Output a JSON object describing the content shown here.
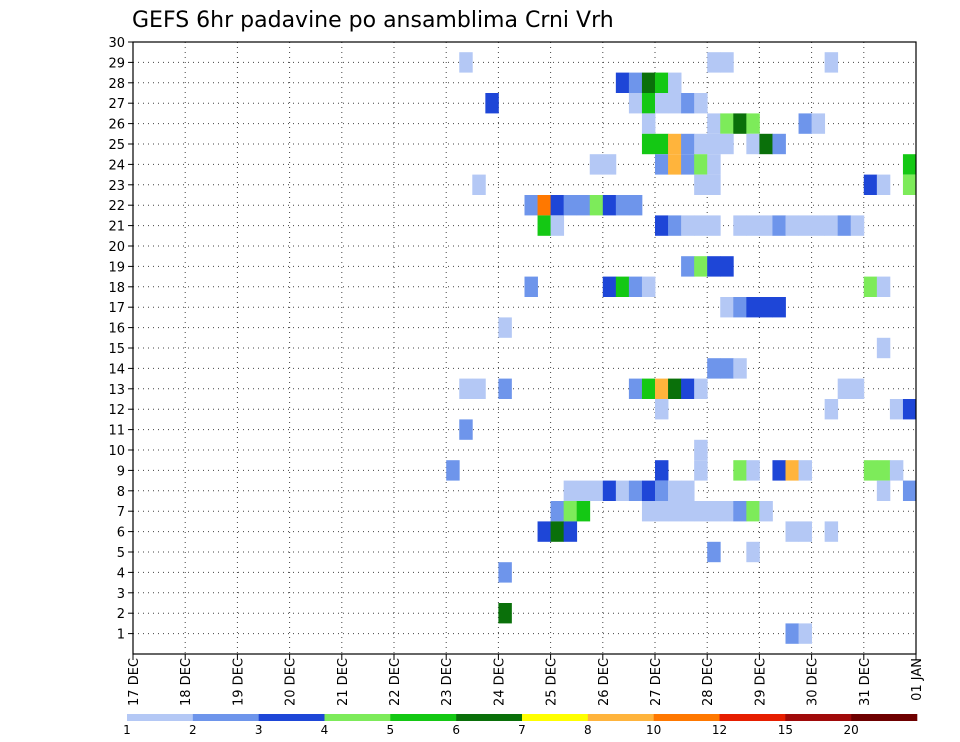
{
  "chart_data": {
    "type": "heatmap",
    "title": "GEFS 6hr padavine po ansamblima Crni Vrh",
    "xlabel": "",
    "ylabel": "",
    "x_tick_labels": [
      "17 DEC",
      "18 DEC",
      "19 DEC",
      "20 DEC",
      "21 DEC",
      "22 DEC",
      "23 DEC",
      "24 DEC",
      "25 DEC",
      "26 DEC",
      "27 DEC",
      "28 DEC",
      "29 DEC",
      "30 DEC",
      "31 DEC",
      "01 JAN"
    ],
    "y_tick_labels": [
      "1",
      "2",
      "3",
      "4",
      "5",
      "6",
      "7",
      "8",
      "9",
      "10",
      "11",
      "12",
      "13",
      "14",
      "15",
      "16",
      "17",
      "18",
      "19",
      "20",
      "21",
      "22",
      "23",
      "24",
      "25",
      "26",
      "27",
      "28",
      "29",
      "30"
    ],
    "x_unit": "6-hour steps starting 17 DEC 00Z",
    "xlim": [
      0,
      60
    ],
    "ylim": [
      0,
      30
    ],
    "grid": true,
    "colorbar": {
      "labels": [
        "1",
        "2",
        "3",
        "4",
        "5",
        "6",
        "7",
        "8",
        "10",
        "12",
        "15",
        "20"
      ],
      "colors": [
        "#b4c8f5",
        "#6e95eb",
        "#1e46d7",
        "#7deb5a",
        "#14c814",
        "#0a700a",
        "#ffff00",
        "#ffb43c",
        "#ff7800",
        "#e61e00",
        "#a00a0a",
        "#6e0000"
      ]
    },
    "cells": [
      {
        "member": 29,
        "step": 25,
        "cls": 1
      },
      {
        "member": 29,
        "step": 44,
        "cls": 1
      },
      {
        "member": 29,
        "step": 45,
        "cls": 1
      },
      {
        "member": 29,
        "step": 53,
        "cls": 1
      },
      {
        "member": 28,
        "step": 37,
        "cls": 3
      },
      {
        "member": 28,
        "step": 38,
        "cls": 2
      },
      {
        "member": 28,
        "step": 39,
        "cls": 6
      },
      {
        "member": 28,
        "step": 40,
        "cls": 5
      },
      {
        "member": 28,
        "step": 41,
        "cls": 1
      },
      {
        "member": 27,
        "step": 27,
        "cls": 3
      },
      {
        "member": 27,
        "step": 38,
        "cls": 1
      },
      {
        "member": 27,
        "step": 39,
        "cls": 5
      },
      {
        "member": 27,
        "step": 40,
        "cls": 1
      },
      {
        "member": 27,
        "step": 41,
        "cls": 1
      },
      {
        "member": 27,
        "step": 42,
        "cls": 2
      },
      {
        "member": 27,
        "step": 43,
        "cls": 1
      },
      {
        "member": 26,
        "step": 39,
        "cls": 1
      },
      {
        "member": 26,
        "step": 44,
        "cls": 1
      },
      {
        "member": 26,
        "step": 45,
        "cls": 4
      },
      {
        "member": 26,
        "step": 46,
        "cls": 6
      },
      {
        "member": 26,
        "step": 47,
        "cls": 4
      },
      {
        "member": 26,
        "step": 51,
        "cls": 2
      },
      {
        "member": 26,
        "step": 52,
        "cls": 1
      },
      {
        "member": 25,
        "step": 39,
        "cls": 5
      },
      {
        "member": 25,
        "step": 40,
        "cls": 5
      },
      {
        "member": 25,
        "step": 41,
        "cls": 8
      },
      {
        "member": 25,
        "step": 42,
        "cls": 2
      },
      {
        "member": 25,
        "step": 43,
        "cls": 1
      },
      {
        "member": 25,
        "step": 44,
        "cls": 1
      },
      {
        "member": 25,
        "step": 45,
        "cls": 1
      },
      {
        "member": 25,
        "step": 47,
        "cls": 1
      },
      {
        "member": 25,
        "step": 48,
        "cls": 6
      },
      {
        "member": 25,
        "step": 49,
        "cls": 2
      },
      {
        "member": 24,
        "step": 35,
        "cls": 1
      },
      {
        "member": 24,
        "step": 36,
        "cls": 1
      },
      {
        "member": 24,
        "step": 40,
        "cls": 2
      },
      {
        "member": 24,
        "step": 41,
        "cls": 8
      },
      {
        "member": 24,
        "step": 42,
        "cls": 2
      },
      {
        "member": 24,
        "step": 43,
        "cls": 4
      },
      {
        "member": 24,
        "step": 44,
        "cls": 1
      },
      {
        "member": 24,
        "step": 59,
        "cls": 5
      },
      {
        "member": 23,
        "step": 26,
        "cls": 1
      },
      {
        "member": 23,
        "step": 43,
        "cls": 1
      },
      {
        "member": 23,
        "step": 44,
        "cls": 1
      },
      {
        "member": 23,
        "step": 56,
        "cls": 3
      },
      {
        "member": 23,
        "step": 57,
        "cls": 1
      },
      {
        "member": 23,
        "step": 59,
        "cls": 4
      },
      {
        "member": 22,
        "step": 30,
        "cls": 2
      },
      {
        "member": 22,
        "step": 31,
        "cls": 9
      },
      {
        "member": 22,
        "step": 32,
        "cls": 3
      },
      {
        "member": 22,
        "step": 33,
        "cls": 2
      },
      {
        "member": 22,
        "step": 34,
        "cls": 2
      },
      {
        "member": 22,
        "step": 35,
        "cls": 4
      },
      {
        "member": 22,
        "step": 36,
        "cls": 3
      },
      {
        "member": 22,
        "step": 37,
        "cls": 2
      },
      {
        "member": 22,
        "step": 38,
        "cls": 2
      },
      {
        "member": 21,
        "step": 31,
        "cls": 5
      },
      {
        "member": 21,
        "step": 32,
        "cls": 1
      },
      {
        "member": 21,
        "step": 40,
        "cls": 3
      },
      {
        "member": 21,
        "step": 41,
        "cls": 2
      },
      {
        "member": 21,
        "step": 42,
        "cls": 1
      },
      {
        "member": 21,
        "step": 43,
        "cls": 1
      },
      {
        "member": 21,
        "step": 44,
        "cls": 1
      },
      {
        "member": 21,
        "step": 46,
        "cls": 1
      },
      {
        "member": 21,
        "step": 47,
        "cls": 1
      },
      {
        "member": 21,
        "step": 48,
        "cls": 1
      },
      {
        "member": 21,
        "step": 49,
        "cls": 2
      },
      {
        "member": 21,
        "step": 50,
        "cls": 1
      },
      {
        "member": 21,
        "step": 51,
        "cls": 1
      },
      {
        "member": 21,
        "step": 52,
        "cls": 1
      },
      {
        "member": 21,
        "step": 53,
        "cls": 1
      },
      {
        "member": 21,
        "step": 54,
        "cls": 2
      },
      {
        "member": 21,
        "step": 55,
        "cls": 1
      },
      {
        "member": 19,
        "step": 42,
        "cls": 2
      },
      {
        "member": 19,
        "step": 43,
        "cls": 4
      },
      {
        "member": 19,
        "step": 44,
        "cls": 3
      },
      {
        "member": 19,
        "step": 45,
        "cls": 3
      },
      {
        "member": 18,
        "step": 30,
        "cls": 2
      },
      {
        "member": 18,
        "step": 36,
        "cls": 3
      },
      {
        "member": 18,
        "step": 37,
        "cls": 5
      },
      {
        "member": 18,
        "step": 38,
        "cls": 2
      },
      {
        "member": 18,
        "step": 39,
        "cls": 1
      },
      {
        "member": 18,
        "step": 56,
        "cls": 4
      },
      {
        "member": 18,
        "step": 57,
        "cls": 1
      },
      {
        "member": 17,
        "step": 45,
        "cls": 1
      },
      {
        "member": 17,
        "step": 46,
        "cls": 2
      },
      {
        "member": 17,
        "step": 47,
        "cls": 3
      },
      {
        "member": 17,
        "step": 48,
        "cls": 3
      },
      {
        "member": 17,
        "step": 49,
        "cls": 3
      },
      {
        "member": 16,
        "step": 28,
        "cls": 1
      },
      {
        "member": 15,
        "step": 57,
        "cls": 1
      },
      {
        "member": 14,
        "step": 44,
        "cls": 2
      },
      {
        "member": 14,
        "step": 45,
        "cls": 2
      },
      {
        "member": 14,
        "step": 46,
        "cls": 1
      },
      {
        "member": 13,
        "step": 25,
        "cls": 1
      },
      {
        "member": 13,
        "step": 26,
        "cls": 1
      },
      {
        "member": 13,
        "step": 28,
        "cls": 2
      },
      {
        "member": 13,
        "step": 38,
        "cls": 2
      },
      {
        "member": 13,
        "step": 39,
        "cls": 5
      },
      {
        "member": 13,
        "step": 40,
        "cls": 8
      },
      {
        "member": 13,
        "step": 41,
        "cls": 6
      },
      {
        "member": 13,
        "step": 42,
        "cls": 3
      },
      {
        "member": 13,
        "step": 43,
        "cls": 1
      },
      {
        "member": 13,
        "step": 54,
        "cls": 1
      },
      {
        "member": 13,
        "step": 55,
        "cls": 1
      },
      {
        "member": 12,
        "step": 40,
        "cls": 1
      },
      {
        "member": 12,
        "step": 53,
        "cls": 1
      },
      {
        "member": 12,
        "step": 58,
        "cls": 1
      },
      {
        "member": 12,
        "step": 59,
        "cls": 3
      },
      {
        "member": 11,
        "step": 25,
        "cls": 2
      },
      {
        "member": 10,
        "step": 43,
        "cls": 1
      },
      {
        "member": 9,
        "step": 24,
        "cls": 2
      },
      {
        "member": 9,
        "step": 40,
        "cls": 3
      },
      {
        "member": 9,
        "step": 43,
        "cls": 1
      },
      {
        "member": 9,
        "step": 46,
        "cls": 4
      },
      {
        "member": 9,
        "step": 47,
        "cls": 1
      },
      {
        "member": 9,
        "step": 49,
        "cls": 3
      },
      {
        "member": 9,
        "step": 50,
        "cls": 8
      },
      {
        "member": 9,
        "step": 51,
        "cls": 1
      },
      {
        "member": 9,
        "step": 56,
        "cls": 4
      },
      {
        "member": 9,
        "step": 57,
        "cls": 4
      },
      {
        "member": 9,
        "step": 58,
        "cls": 1
      },
      {
        "member": 8,
        "step": 33,
        "cls": 1
      },
      {
        "member": 8,
        "step": 34,
        "cls": 1
      },
      {
        "member": 8,
        "step": 35,
        "cls": 1
      },
      {
        "member": 8,
        "step": 36,
        "cls": 3
      },
      {
        "member": 8,
        "step": 37,
        "cls": 1
      },
      {
        "member": 8,
        "step": 38,
        "cls": 2
      },
      {
        "member": 8,
        "step": 39,
        "cls": 3
      },
      {
        "member": 8,
        "step": 40,
        "cls": 2
      },
      {
        "member": 8,
        "step": 41,
        "cls": 1
      },
      {
        "member": 8,
        "step": 42,
        "cls": 1
      },
      {
        "member": 8,
        "step": 57,
        "cls": 1
      },
      {
        "member": 8,
        "step": 59,
        "cls": 2
      },
      {
        "member": 7,
        "step": 32,
        "cls": 2
      },
      {
        "member": 7,
        "step": 33,
        "cls": 4
      },
      {
        "member": 7,
        "step": 34,
        "cls": 5
      },
      {
        "member": 7,
        "step": 39,
        "cls": 1
      },
      {
        "member": 7,
        "step": 40,
        "cls": 1
      },
      {
        "member": 7,
        "step": 41,
        "cls": 1
      },
      {
        "member": 7,
        "step": 42,
        "cls": 1
      },
      {
        "member": 7,
        "step": 43,
        "cls": 1
      },
      {
        "member": 7,
        "step": 44,
        "cls": 1
      },
      {
        "member": 7,
        "step": 45,
        "cls": 1
      },
      {
        "member": 7,
        "step": 46,
        "cls": 2
      },
      {
        "member": 7,
        "step": 47,
        "cls": 4
      },
      {
        "member": 7,
        "step": 48,
        "cls": 1
      },
      {
        "member": 6,
        "step": 31,
        "cls": 3
      },
      {
        "member": 6,
        "step": 32,
        "cls": 6
      },
      {
        "member": 6,
        "step": 33,
        "cls": 3
      },
      {
        "member": 6,
        "step": 50,
        "cls": 1
      },
      {
        "member": 6,
        "step": 51,
        "cls": 1
      },
      {
        "member": 6,
        "step": 53,
        "cls": 1
      },
      {
        "member": 5,
        "step": 44,
        "cls": 2
      },
      {
        "member": 5,
        "step": 47,
        "cls": 1
      },
      {
        "member": 4,
        "step": 28,
        "cls": 2
      },
      {
        "member": 2,
        "step": 28,
        "cls": 6
      },
      {
        "member": 1,
        "step": 50,
        "cls": 2
      },
      {
        "member": 1,
        "step": 51,
        "cls": 1
      }
    ]
  }
}
